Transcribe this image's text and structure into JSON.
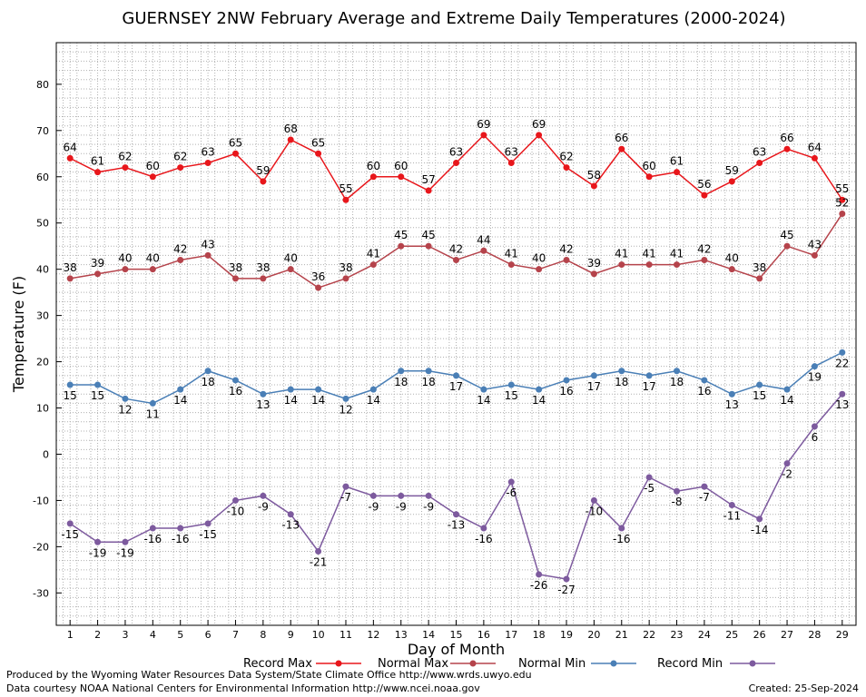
{
  "chart_data": {
    "type": "line",
    "title": "GUERNSEY 2NW February Average and Extreme Daily Temperatures (2000-2024)",
    "xlabel": "Day of Month",
    "ylabel": "Temperature (F)",
    "ylim": [
      -37,
      89
    ],
    "yticks": [
      -30,
      -20,
      -10,
      0,
      10,
      20,
      30,
      40,
      50,
      60,
      70,
      80
    ],
    "grid": true,
    "legend_placement": "bottom",
    "x": [
      1,
      2,
      3,
      4,
      5,
      6,
      7,
      8,
      9,
      10,
      11,
      12,
      13,
      14,
      15,
      16,
      17,
      18,
      19,
      20,
      21,
      22,
      23,
      24,
      25,
      26,
      27,
      28,
      29
    ],
    "series": [
      {
        "name": "Record Max",
        "color": "#e8161b",
        "label_position": "above",
        "values": [
          64,
          61,
          62,
          60,
          62,
          63,
          65,
          59,
          68,
          65,
          55,
          60,
          60,
          57,
          63,
          69,
          63,
          69,
          62,
          58,
          66,
          60,
          61,
          56,
          59,
          63,
          66,
          64,
          55
        ]
      },
      {
        "name": "Normal Max",
        "color": "#b5434b",
        "label_position": "above",
        "values": [
          38,
          39,
          40,
          40,
          42,
          43,
          38,
          38,
          40,
          36,
          38,
          41,
          45,
          45,
          42,
          44,
          41,
          40,
          42,
          39,
          41,
          41,
          41,
          42,
          40,
          38,
          45,
          43,
          52
        ]
      },
      {
        "name": "Normal Min",
        "color": "#4a7fb6",
        "label_position": "below",
        "values": [
          15,
          15,
          12,
          11,
          14,
          18,
          16,
          13,
          14,
          14,
          12,
          14,
          18,
          18,
          17,
          14,
          15,
          14,
          16,
          17,
          18,
          17,
          18,
          16,
          13,
          15,
          14,
          19,
          22
        ]
      },
      {
        "name": "Record Min",
        "color": "#7d5a9e",
        "label_position": "below",
        "values": [
          -15,
          -19,
          -19,
          -16,
          -16,
          -15,
          -10,
          -9,
          -13,
          -21,
          -7,
          -9,
          -9,
          -9,
          -13,
          -16,
          -6,
          -26,
          -27,
          -10,
          -16,
          -5,
          -8,
          -7,
          -11,
          -14,
          -2,
          6,
          13
        ]
      }
    ]
  },
  "footer": {
    "produced_by": "Produced by the Wyoming Water Resources Data System/State Climate Office http://www.wrds.uwyo.edu",
    "courtesy": "Data courtesy NOAA National Centers for Environmental Information http://www.ncei.noaa.gov",
    "created": "Created: 25-Sep-2024"
  }
}
